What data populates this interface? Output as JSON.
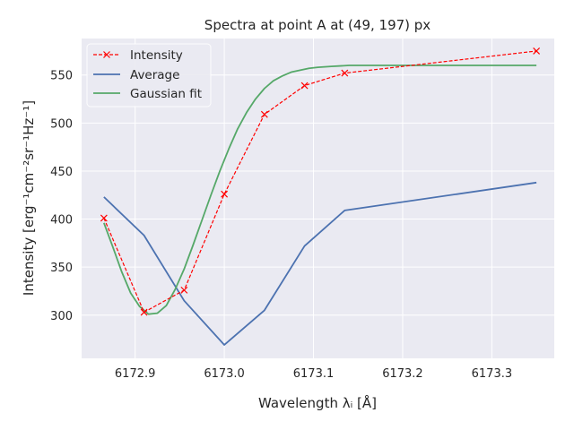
{
  "chart_data": {
    "type": "line",
    "title": "Spectra at point A at (49, 197) px",
    "xlabel": "Wavelength λᵢ [Å]",
    "ylabel": "Intensity [erg⁻¹cm⁻²sr⁻¹Hz⁻¹]",
    "xlim": [
      6172.84,
      6173.37
    ],
    "ylim": [
      255,
      588
    ],
    "xticks": [
      6172.9,
      6173.0,
      6173.1,
      6173.2,
      6173.3
    ],
    "xtick_labels": [
      "6172.9",
      "6173.0",
      "6173.1",
      "6173.2",
      "6173.3"
    ],
    "yticks": [
      300,
      350,
      400,
      450,
      500,
      550
    ],
    "ytick_labels": [
      "300",
      "350",
      "400",
      "450",
      "500",
      "550"
    ],
    "grid": true,
    "legend_position": "top-left",
    "colors": {
      "background": "#eaeaf2",
      "grid": "#ffffff",
      "intensity": "#ff0000",
      "average": "#4c72b0",
      "fit": "#55a868"
    },
    "series": [
      {
        "name": "Intensity",
        "style": "dashed-x",
        "x": [
          6172.865,
          6172.91,
          6172.955,
          6173.0,
          6173.045,
          6173.09,
          6173.135,
          6173.35
        ],
        "y": [
          401,
          303,
          326,
          426,
          509,
          539,
          552,
          575
        ]
      },
      {
        "name": "Average",
        "style": "solid",
        "x": [
          6172.865,
          6172.91,
          6172.955,
          6173.0,
          6173.045,
          6173.09,
          6173.135,
          6173.35
        ],
        "y": [
          423,
          383,
          315,
          269,
          305,
          372,
          409,
          438
        ]
      },
      {
        "name": "Gaussian fit",
        "style": "solid",
        "x": [
          6172.865,
          6172.875,
          6172.885,
          6172.895,
          6172.905,
          6172.915,
          6172.925,
          6172.935,
          6172.945,
          6172.955,
          6172.965,
          6172.975,
          6172.985,
          6172.995,
          6173.005,
          6173.015,
          6173.025,
          6173.035,
          6173.045,
          6173.055,
          6173.065,
          6173.075,
          6173.085,
          6173.095,
          6173.105,
          6173.12,
          6173.14,
          6173.16,
          6173.2,
          6173.25,
          6173.3,
          6173.35
        ],
        "y": [
          396,
          371,
          345,
          323,
          309,
          301,
          302,
          310,
          327,
          348,
          373,
          399,
          425,
          450,
          473,
          494,
          511,
          525,
          536,
          544,
          549,
          553,
          555,
          557,
          558,
          559,
          560,
          560,
          560,
          560,
          560,
          560
        ]
      }
    ]
  }
}
